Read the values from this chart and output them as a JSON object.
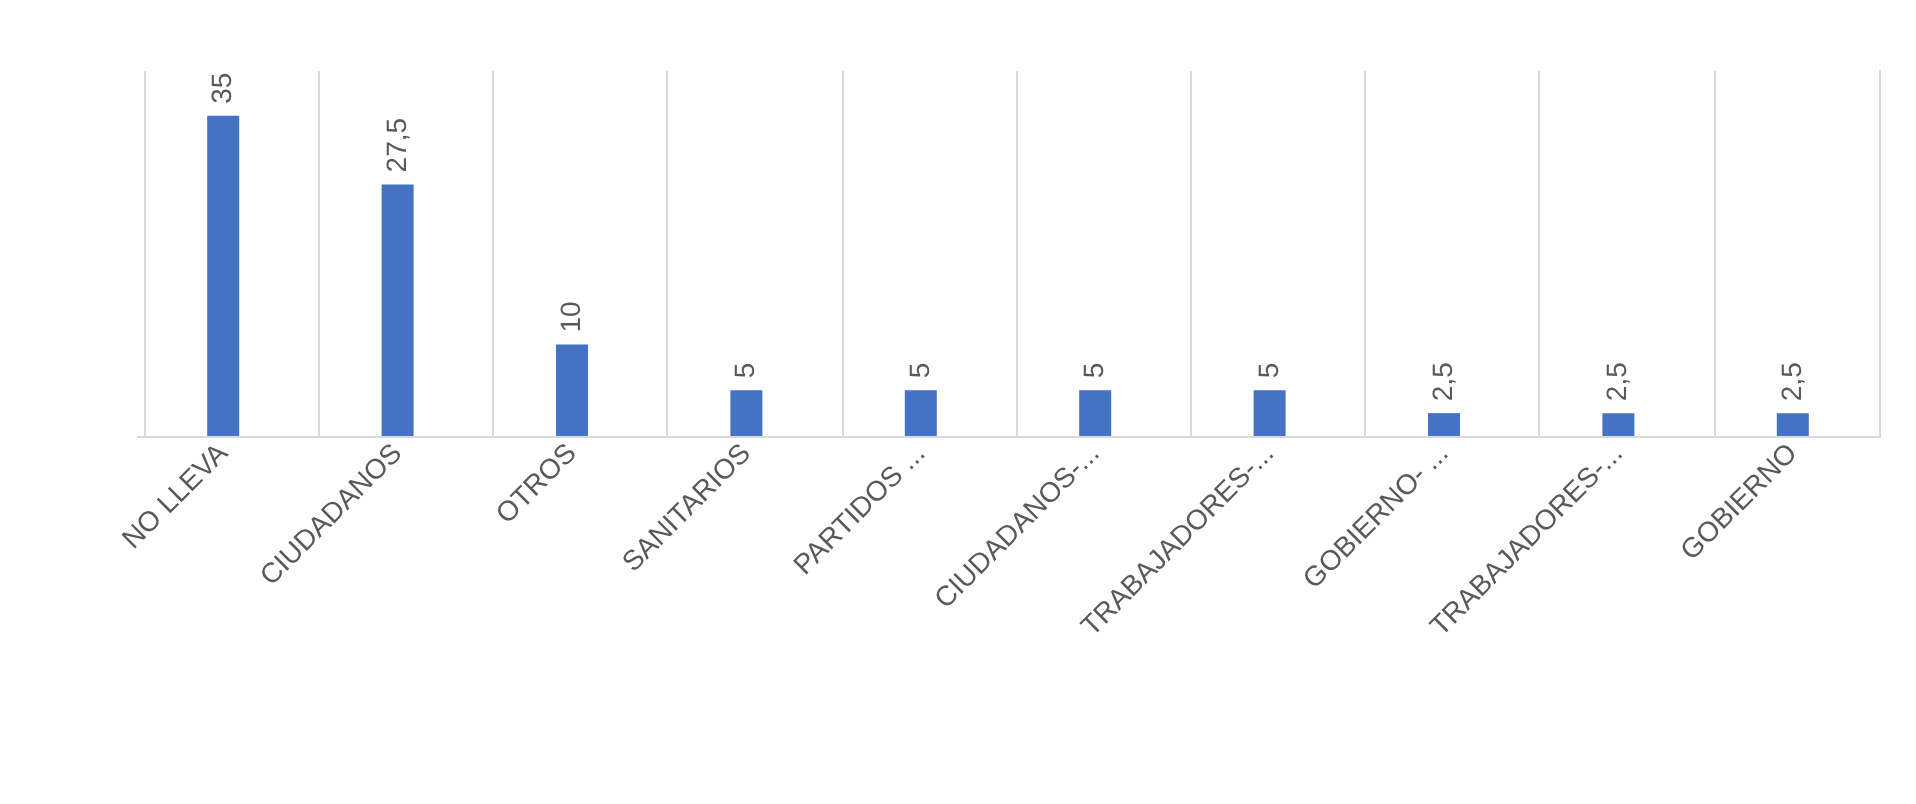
{
  "chart_data": {
    "type": "bar",
    "categories": [
      "NO LLEVA",
      "CIUDADANOS",
      "OTROS",
      "SANITARIOS",
      "PARTIDOS ...",
      "CIUDADANOS-...",
      "TRABAJADORES-...",
      "GOBIERNO- ...",
      "TRABAJADORES-...",
      "GOBIERNO"
    ],
    "values": [
      35,
      27.5,
      10,
      5,
      5,
      5,
      5,
      2.5,
      2.5,
      2.5
    ],
    "value_labels": [
      "35",
      "27,5",
      "10",
      "5",
      "5",
      "5",
      "5",
      "2,5",
      "2,5",
      "2,5"
    ],
    "color": "#4472c4",
    "ylim": [
      0,
      40
    ],
    "grid": "x",
    "tick_labels": "x"
  }
}
